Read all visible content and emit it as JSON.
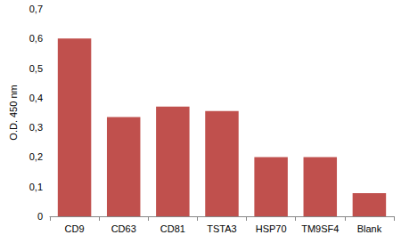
{
  "chart_data": {
    "type": "bar",
    "y_label": "O.D. 450 nm",
    "categories": [
      "CD9",
      "CD63",
      "CD81",
      "TSTA3",
      "HSP70",
      "TM9SF4",
      "Blank"
    ],
    "values": [
      0.6,
      0.335,
      0.37,
      0.355,
      0.2,
      0.2,
      0.078
    ],
    "color": "#c0504d",
    "ylim": [
      0,
      0.7
    ],
    "yticks": [
      0,
      {
        "value": 0.1,
        "label": "0,1"
      },
      {
        "value": 0.2,
        "label": "0,2"
      },
      {
        "value": 0.3,
        "label": "0,3"
      },
      {
        "value": 0.4,
        "label": "0,4"
      },
      {
        "value": 0.5,
        "label": "0,5"
      },
      {
        "value": 0.6,
        "label": "0,6"
      },
      {
        "value": 0.7,
        "label": "0,7"
      }
    ],
    "grid": false
  }
}
